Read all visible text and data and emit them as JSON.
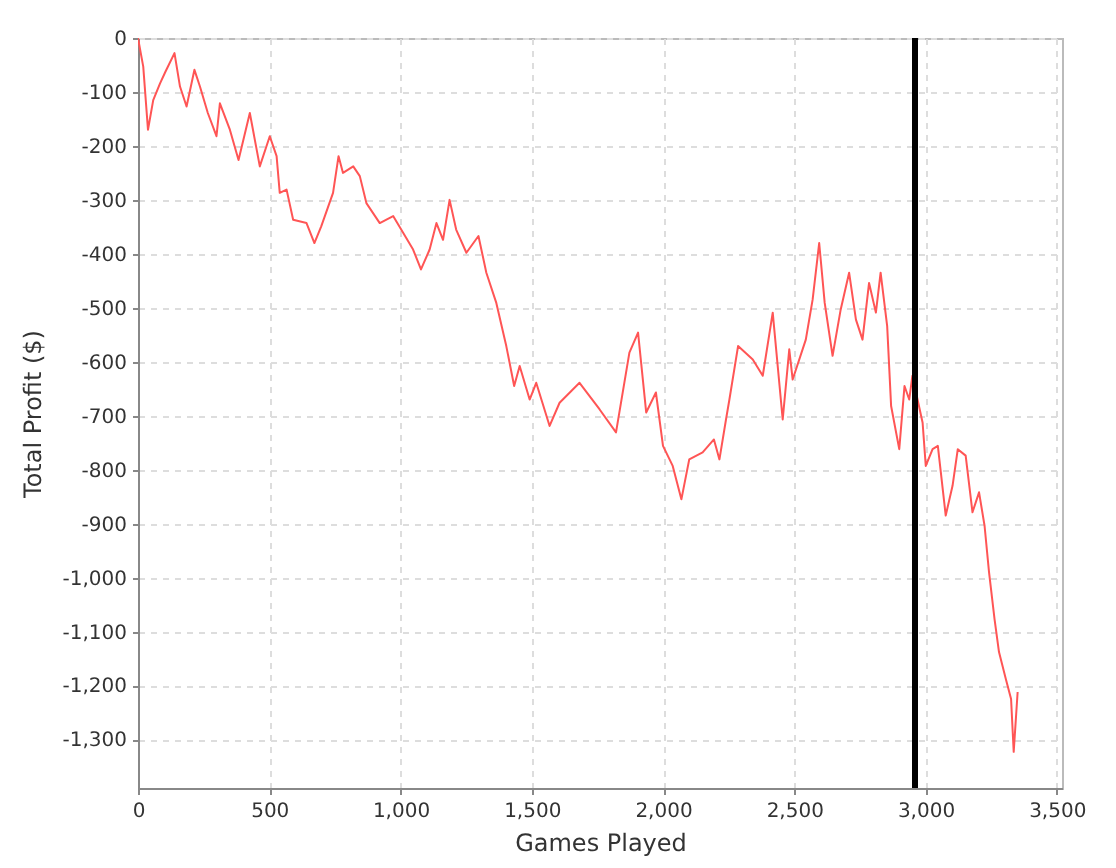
{
  "chart_data": {
    "type": "line",
    "xlabel": "Games Played",
    "ylabel": "Total Profit ($)",
    "x": [
      0,
      20,
      38,
      58,
      84,
      104,
      139,
      160,
      185,
      215,
      236,
      266,
      299,
      312,
      350,
      383,
      426,
      464,
      502,
      528,
      540,
      566,
      591,
      642,
      672,
      698,
      743,
      764,
      781,
      820,
      845,
      870,
      921,
      972,
      1010,
      1048,
      1078,
      1111,
      1137,
      1162,
      1187,
      1212,
      1251,
      1297,
      1327,
      1365,
      1403,
      1433,
      1454,
      1492,
      1517,
      1568,
      1606,
      1682,
      1758,
      1821,
      1872,
      1905,
      1936,
      1973,
      2000,
      2037,
      2070,
      2100,
      2151,
      2194,
      2215,
      2240,
      2253,
      2286,
      2342,
      2380,
      2418,
      2456,
      2481,
      2494,
      2544,
      2570,
      2595,
      2616,
      2646,
      2677,
      2709,
      2735,
      2760,
      2785,
      2811,
      2829,
      2854,
      2869,
      2900,
      2920,
      2938,
      2950,
      2989,
      3001,
      3027,
      3047,
      3077,
      3103,
      3123,
      3153,
      3179,
      3204,
      3225,
      3242,
      3263,
      3280,
      3306,
      3326,
      3336,
      3351
    ],
    "series": [
      {
        "color": "#ff5555",
        "values": [
          0,
          -53,
          -170,
          -115,
          -84,
          -63,
          -28,
          -90,
          -127,
          -59,
          -90,
          -139,
          -182,
          -121,
          -170,
          -226,
          -139,
          -238,
          -182,
          -219,
          -287,
          -281,
          -337,
          -343,
          -380,
          -349,
          -287,
          -219,
          -250,
          -238,
          -256,
          -306,
          -343,
          -330,
          -361,
          -392,
          -429,
          -392,
          -343,
          -374,
          -300,
          -355,
          -398,
          -367,
          -435,
          -491,
          -571,
          -645,
          -608,
          -670,
          -639,
          -719,
          -676,
          -639,
          -688,
          -731,
          -583,
          -546,
          -694,
          -657,
          -756,
          -793,
          -855,
          -781,
          -768,
          -744,
          -781,
          -707,
          -670,
          -571,
          -596,
          -626,
          -509,
          -707,
          -577,
          -633,
          -559,
          -485,
          -380,
          -491,
          -589,
          -503,
          -435,
          -522,
          -559,
          -454,
          -509,
          -435,
          -534,
          -682,
          -762,
          -645,
          -670,
          -626,
          -713,
          -793,
          -762,
          -756,
          -885,
          -830,
          -762,
          -774,
          -879,
          -842,
          -904,
          -990,
          -1077,
          -1138,
          -1188,
          -1225,
          -1323,
          -1212
        ]
      }
    ],
    "xlim": [
      0,
      3520
    ],
    "ylim": [
      -1390,
      0
    ],
    "xticks": [
      0,
      500,
      {
        "value": 1000,
        "label": "1,000"
      },
      {
        "value": 1500,
        "label": "1,500"
      },
      {
        "value": 2000,
        "label": "2,000"
      },
      {
        "value": 2500,
        "label": "2,500"
      },
      {
        "value": 3000,
        "label": "3,000"
      },
      {
        "value": 3500,
        "label": "3,500"
      }
    ],
    "yticks": [
      0,
      -100,
      -200,
      -300,
      -400,
      -500,
      -600,
      -700,
      -800,
      -900,
      {
        "value": -1000,
        "label": "-1,000"
      },
      {
        "value": -1100,
        "label": "-1,100"
      },
      {
        "value": -1200,
        "label": "-1,200"
      },
      {
        "value": -1300,
        "label": "-1,300"
      }
    ],
    "grid": true,
    "ref_lines": [
      {
        "axis": "x",
        "value": 2960,
        "color": "#000000"
      }
    ]
  }
}
